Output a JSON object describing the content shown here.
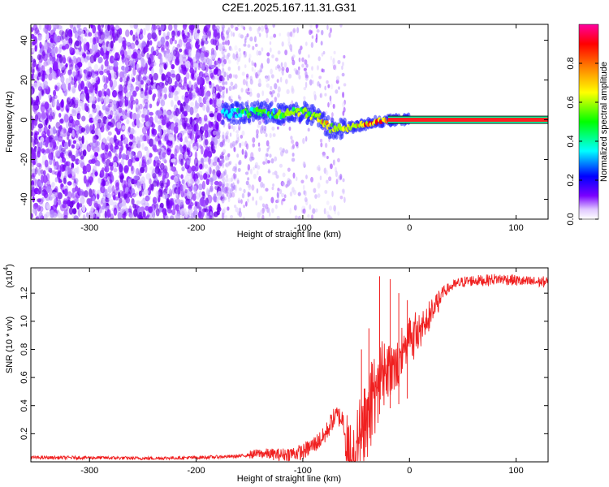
{
  "chart_data": [
    {
      "type": "heatmap",
      "title": "C2E1.2025.167.11.31.G31",
      "xlabel": "Height of straight line (km)",
      "ylabel": "Frequency (Hz)",
      "xlim": [
        -355,
        130
      ],
      "ylim": [
        -50,
        48
      ],
      "xticks": [
        "-300",
        "-200",
        "-100",
        "0",
        "100"
      ],
      "yticks": [
        "40",
        "20",
        "0",
        "-20",
        "-40"
      ],
      "colorbar": {
        "label": "Normalized spectral amplitude",
        "range": [
          0,
          1
        ],
        "ticks": [
          "0.0",
          "0.2",
          "0.4",
          "0.6",
          "0.8"
        ],
        "colors": [
          "#ffffff",
          "#7a00ff",
          "#0000ff",
          "#00ffff",
          "#00ff00",
          "#ffff00",
          "#ff8000",
          "#ff0000",
          "#ff00a0"
        ]
      },
      "features": {
        "noise_region_x": [
          -355,
          -175
        ],
        "scatter_fade_x": [
          -175,
          -60
        ],
        "carrier_track": [
          {
            "x": -175,
            "freq": 3
          },
          {
            "x": -150,
            "freq": 4
          },
          {
            "x": -120,
            "freq": 3
          },
          {
            "x": -100,
            "freq": 4
          },
          {
            "x": -85,
            "freq": 1
          },
          {
            "x": -75,
            "freq": -4
          },
          {
            "x": -65,
            "freq": -5
          },
          {
            "x": -50,
            "freq": -3
          },
          {
            "x": -30,
            "freq": -1
          },
          {
            "x": -15,
            "freq": 0
          },
          {
            "x": 0,
            "freq": 0
          },
          {
            "x": 130,
            "freq": 0
          }
        ],
        "steady_line_x": [
          0,
          130
        ],
        "steady_line_freq": 0
      },
      "grid": false
    },
    {
      "type": "line",
      "xlabel": "Height of straight line (km)",
      "ylabel": "SNR (10 * v/v)",
      "exponent_label": "(x10",
      "exponent_power": "4",
      "exponent_close": ")",
      "xlim": [
        -355,
        130
      ],
      "ylim": [
        0,
        1.38
      ],
      "xticks": [
        "-300",
        "-200",
        "-100",
        "0",
        "100"
      ],
      "yticks": [
        "1.2",
        "1.0",
        "0.8",
        "0.6",
        "0.4",
        "0.2"
      ],
      "line_color": "#f02020",
      "series": [
        {
          "x": [
            -355,
            -300,
            -250,
            -200,
            -160,
            -140,
            -120,
            -100,
            -90,
            -80,
            -72,
            -68,
            -62,
            -58,
            -55,
            -50,
            -45,
            -40,
            -35,
            -30,
            -25,
            -20,
            -15,
            -10,
            -5,
            0,
            5,
            10,
            15,
            20,
            25,
            30,
            40,
            50,
            60,
            70,
            80,
            90,
            100,
            110,
            120,
            130
          ],
          "values": [
            0.03,
            0.03,
            0.025,
            0.03,
            0.04,
            0.06,
            0.05,
            0.07,
            0.12,
            0.18,
            0.3,
            0.33,
            0.3,
            0.08,
            0.05,
            0.15,
            0.3,
            0.45,
            0.55,
            0.65,
            0.72,
            0.75,
            0.78,
            0.82,
            0.87,
            0.92,
            0.96,
            1.0,
            1.04,
            1.1,
            1.15,
            1.2,
            1.25,
            1.28,
            1.29,
            1.29,
            1.3,
            1.3,
            1.29,
            1.28,
            1.28,
            1.28
          ]
        }
      ],
      "spikes": [
        {
          "x": -28,
          "y": 1.32
        },
        {
          "x": -18,
          "y": 1.3
        },
        {
          "x": -45,
          "y": 0.8
        },
        {
          "x": -38,
          "y": 0.95
        },
        {
          "x": -10,
          "y": 1.2
        },
        {
          "x": -2,
          "y": 1.15
        }
      ],
      "grid": false
    }
  ]
}
